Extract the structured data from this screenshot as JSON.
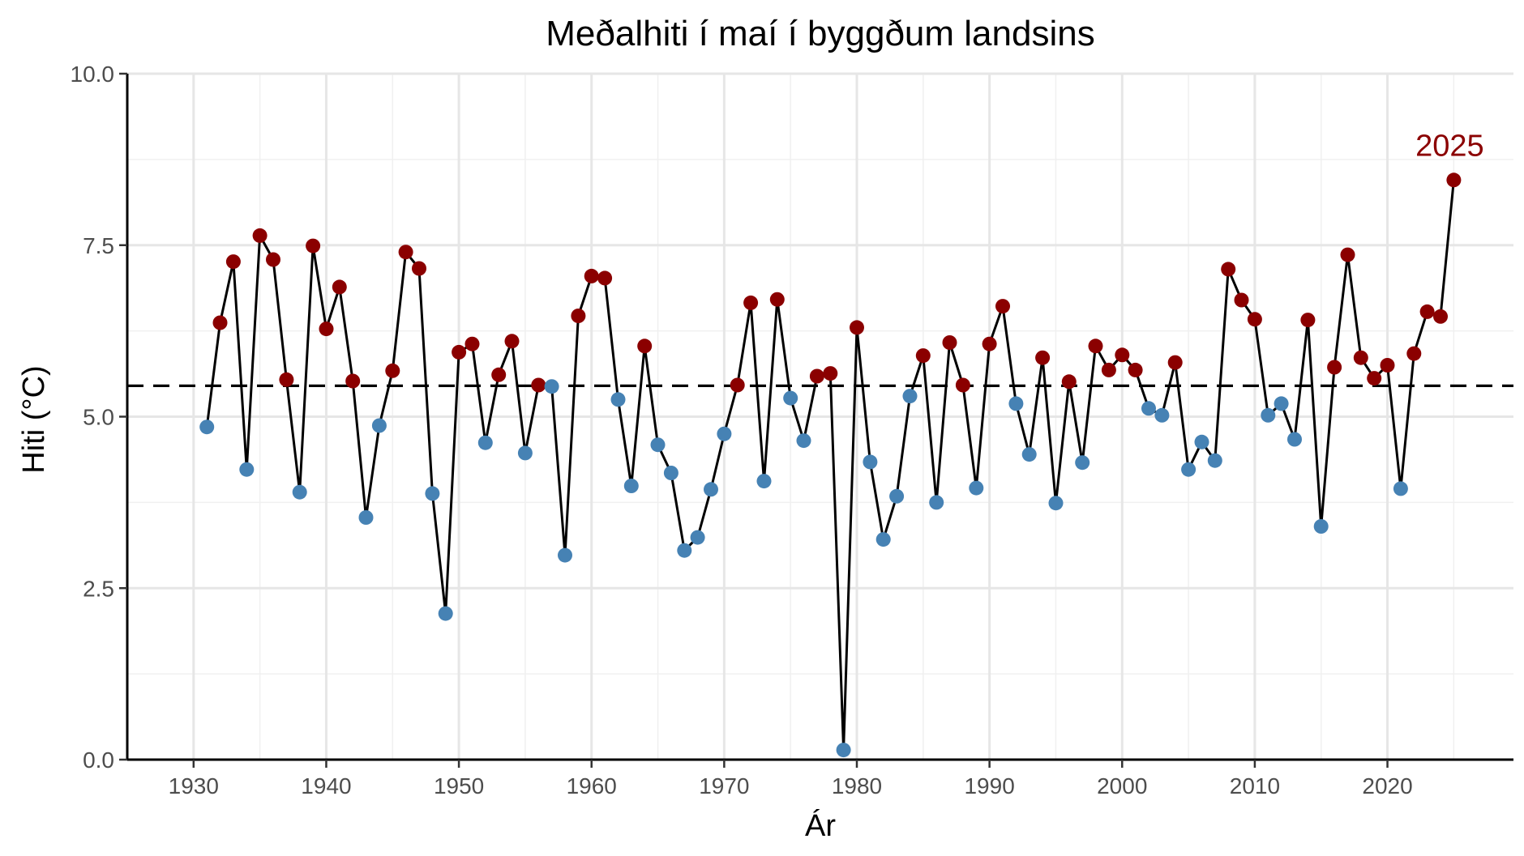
{
  "chart_data": {
    "type": "line",
    "title": "Meðalhiti í maí í byggðum landsins",
    "xlabel": "Ár",
    "ylabel": "Hiti (°C)",
    "xlim": [
      1925,
      2029.5
    ],
    "ylim": [
      0,
      10
    ],
    "x_ticks": [
      1930,
      1940,
      1950,
      1960,
      1970,
      1980,
      1990,
      2000,
      2010,
      2020
    ],
    "y_ticks": [
      0,
      2.5,
      5,
      7.5,
      10
    ],
    "y_tick_labels": [
      "0.0",
      "2.5",
      "5.0",
      "7.5",
      "10.0"
    ],
    "grid": true,
    "reference_line": {
      "y": 5.45,
      "style": "dashed"
    },
    "colors": {
      "above": "#8b0000",
      "below": "#4682b4",
      "line": "#000000",
      "annotation": "#8b0000"
    },
    "annotation": {
      "x": 2025,
      "text": "2025"
    },
    "series": [
      {
        "x": [
          1931,
          1932,
          1933,
          1934,
          1935,
          1936,
          1937,
          1938,
          1939,
          1940,
          1941,
          1942,
          1943,
          1944,
          1945,
          1946,
          1947,
          1948,
          1949,
          1950,
          1951,
          1952,
          1953,
          1954,
          1955,
          1956,
          1957,
          1958,
          1959,
          1960,
          1961,
          1962,
          1963,
          1964,
          1965,
          1966,
          1967,
          1968,
          1969,
          1970,
          1971,
          1972,
          1973,
          1974,
          1975,
          1976,
          1977,
          1978,
          1979,
          1980,
          1981,
          1982,
          1983,
          1984,
          1985,
          1986,
          1987,
          1988,
          1989,
          1990,
          1991,
          1992,
          1993,
          1994,
          1995,
          1996,
          1997,
          1998,
          1999,
          2000,
          2001,
          2002,
          2003,
          2004,
          2005,
          2006,
          2007,
          2008,
          2009,
          2010,
          2011,
          2012,
          2013,
          2014,
          2015,
          2016,
          2017,
          2018,
          2019,
          2020,
          2021,
          2022,
          2023,
          2024,
          2025
        ],
        "y": [
          4.85,
          6.37,
          7.26,
          4.23,
          7.64,
          7.29,
          5.54,
          3.9,
          7.49,
          6.28,
          6.89,
          5.52,
          3.53,
          4.87,
          5.67,
          7.4,
          7.16,
          3.88,
          2.13,
          5.94,
          6.06,
          4.62,
          5.61,
          6.1,
          4.47,
          5.46,
          5.44,
          2.98,
          6.47,
          7.05,
          7.02,
          5.25,
          3.99,
          6.03,
          4.59,
          4.18,
          3.05,
          3.24,
          3.94,
          4.75,
          5.46,
          6.66,
          4.06,
          6.71,
          5.27,
          4.65,
          5.59,
          5.63,
          0.14,
          6.3,
          4.34,
          3.21,
          3.84,
          5.3,
          5.89,
          3.75,
          6.08,
          5.46,
          3.96,
          6.06,
          6.61,
          5.19,
          4.45,
          5.86,
          3.74,
          5.51,
          4.33,
          6.03,
          5.68,
          5.9,
          5.68,
          5.12,
          5.02,
          5.79,
          4.23,
          4.63,
          4.36,
          7.15,
          6.7,
          6.42,
          5.02,
          5.19,
          4.67,
          6.41,
          3.4,
          5.72,
          7.36,
          5.86,
          5.56,
          5.75,
          3.95,
          5.92,
          6.53,
          6.46,
          8.45
        ]
      }
    ]
  }
}
